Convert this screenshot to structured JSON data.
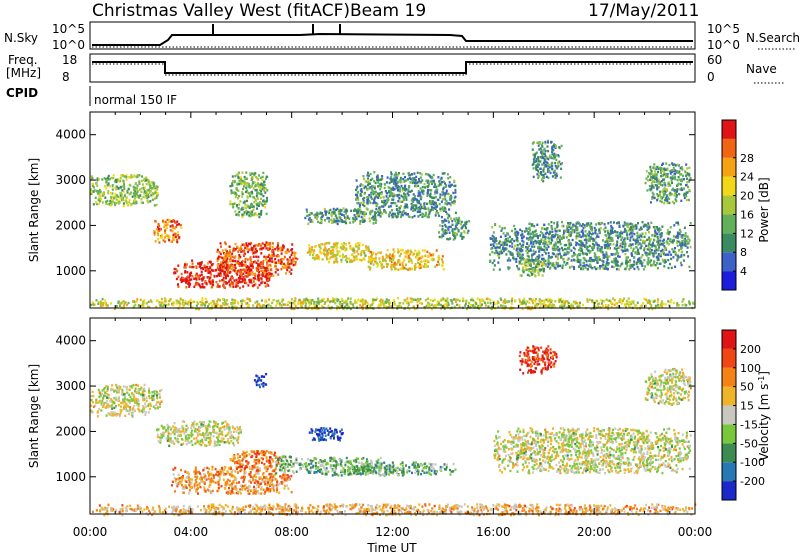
{
  "header": {
    "station": "Christmas Valley West (fitACF)",
    "beam": "Beam 19",
    "date": "17/May/2011"
  },
  "nsky_panel": {
    "label": "N.Sky",
    "left_ticks": [
      "10^5",
      "10^0"
    ],
    "right_label": "N.Search",
    "right_ticks": [
      "10^5",
      "10^0"
    ]
  },
  "freq_panel": {
    "label_line1": "Freq.",
    "label_line2": "[MHz]",
    "left_ticks": [
      "18",
      "8"
    ],
    "right_label": "Nave",
    "right_ticks": [
      "60",
      "0"
    ]
  },
  "cpid": {
    "label": "CPID",
    "value": "normal 150 IF"
  },
  "chart_data": [
    {
      "type": "heatmap",
      "name": "Power",
      "ylabel": "Slant Range [km]",
      "xlabel": "",
      "yticks": [
        1000,
        2000,
        3000,
        4000
      ],
      "ylim": [
        180,
        4500
      ],
      "colorbar": {
        "label": "Power [dB]",
        "ticks": [
          4,
          8,
          12,
          16,
          20,
          24,
          28
        ],
        "colors": [
          "#1c1cdc",
          "#3c62c8",
          "#3a8a62",
          "#63b05a",
          "#a8c83a",
          "#f0d818",
          "#f5a314",
          "#f06414",
          "#e01414"
        ]
      },
      "blobs": [
        {
          "t0": 0.0,
          "t1": 2.7,
          "r0": 2450,
          "r1": 3150,
          "level": 0.45
        },
        {
          "t0": 2.5,
          "t1": 3.6,
          "r0": 1650,
          "r1": 2150,
          "level": 0.78
        },
        {
          "t0": 3.3,
          "t1": 7.2,
          "r0": 650,
          "r1": 1250,
          "level": 0.95
        },
        {
          "t0": 5.0,
          "t1": 8.2,
          "r0": 900,
          "r1": 1650,
          "level": 0.85
        },
        {
          "t0": 8.6,
          "t1": 11.2,
          "r0": 1200,
          "r1": 1650,
          "level": 0.6
        },
        {
          "t0": 11.0,
          "t1": 14.0,
          "r0": 1050,
          "r1": 1500,
          "level": 0.65
        },
        {
          "t0": 5.5,
          "t1": 7.0,
          "r0": 2200,
          "r1": 3200,
          "level": 0.4
        },
        {
          "t0": 8.5,
          "t1": 11.5,
          "r0": 2050,
          "r1": 2400,
          "level": 0.35
        },
        {
          "t0": 10.5,
          "t1": 14.5,
          "r0": 2200,
          "r1": 3200,
          "level": 0.3
        },
        {
          "t0": 13.8,
          "t1": 15.0,
          "r0": 1700,
          "r1": 2200,
          "level": 0.3
        },
        {
          "t0": 15.8,
          "t1": 23.8,
          "r0": 1050,
          "r1": 2100,
          "level": 0.3
        },
        {
          "t0": 17.5,
          "t1": 18.7,
          "r0": 3000,
          "r1": 3900,
          "level": 0.3
        },
        {
          "t0": 22.0,
          "t1": 23.8,
          "r0": 2500,
          "r1": 3400,
          "level": 0.35
        },
        {
          "t0": 17.0,
          "t1": 18.0,
          "r0": 900,
          "r1": 1300,
          "level": 0.45
        },
        {
          "t0": 0.0,
          "t1": 24.0,
          "r0": 180,
          "r1": 420,
          "level": 0.55
        }
      ]
    },
    {
      "type": "heatmap",
      "name": "Velocity",
      "ylabel": "Slant Range [km]",
      "xlabel": "Time UT",
      "xticks": [
        "00:00",
        "04:00",
        "08:00",
        "12:00",
        "16:00",
        "20:00",
        "00:00"
      ],
      "yticks": [
        1000,
        2000,
        3000,
        4000
      ],
      "ylim": [
        180,
        4500
      ],
      "colorbar": {
        "label": "Velocity [m s",
        "label_sup": "-1",
        "label_end": "]",
        "ticks": [
          200,
          100,
          50,
          15,
          -15,
          -50,
          -100,
          -200
        ],
        "colors": [
          "#1c28c8",
          "#2878b4",
          "#3c8c50",
          "#78c83c",
          "#c8c8c0",
          "#f0b428",
          "#f58214",
          "#f04614",
          "#e01414"
        ]
      },
      "blobs": [
        {
          "t0": 0.0,
          "t1": 2.8,
          "r0": 2350,
          "r1": 3050,
          "level": 0.5
        },
        {
          "t0": 2.6,
          "t1": 6.0,
          "r0": 1700,
          "r1": 2250,
          "level": 0.5
        },
        {
          "t0": 3.2,
          "t1": 8.0,
          "r0": 650,
          "r1": 1250,
          "level": 0.68
        },
        {
          "t0": 5.5,
          "t1": 7.5,
          "r0": 1200,
          "r1": 1600,
          "level": 0.75
        },
        {
          "t0": 7.3,
          "t1": 8.2,
          "r0": 1100,
          "r1": 1500,
          "level": 0.4
        },
        {
          "t0": 8.2,
          "t1": 11.5,
          "r0": 1050,
          "r1": 1450,
          "level": 0.36
        },
        {
          "t0": 10.0,
          "t1": 14.5,
          "r0": 1050,
          "r1": 1350,
          "level": 0.36
        },
        {
          "t0": 8.6,
          "t1": 10.0,
          "r0": 1800,
          "r1": 2100,
          "level": 0.05
        },
        {
          "t0": 6.5,
          "t1": 7.0,
          "r0": 3000,
          "r1": 3300,
          "level": 0.05
        },
        {
          "t0": 16.0,
          "t1": 23.8,
          "r0": 1100,
          "r1": 2100,
          "level": 0.5
        },
        {
          "t0": 17.0,
          "t1": 18.5,
          "r0": 3300,
          "r1": 3900,
          "level": 0.9
        },
        {
          "t0": 22.0,
          "t1": 23.8,
          "r0": 2600,
          "r1": 3400,
          "level": 0.5
        },
        {
          "t0": 0.0,
          "t1": 24.0,
          "r0": 180,
          "r1": 420,
          "level": 0.62
        }
      ]
    }
  ]
}
